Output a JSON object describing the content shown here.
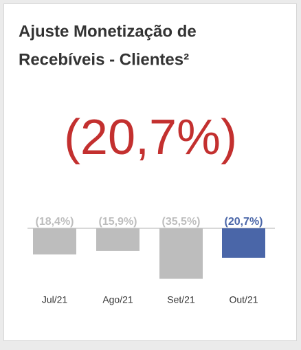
{
  "chart_data": {
    "type": "bar",
    "title": [
      "Ajuste Monetização de",
      "Recebíveis - Clientes²"
    ],
    "headline": "(20,7%)",
    "categories": [
      "Jul/21",
      "Ago/21",
      "Set/21",
      "Out/21"
    ],
    "values": [
      -18.4,
      -15.9,
      -35.5,
      -20.7
    ],
    "value_labels": [
      "(18,4%)",
      "(15,9%)",
      "(35,5%)",
      "(20,7%)"
    ],
    "colors": [
      "#bdbdbd",
      "#bdbdbd",
      "#bdbdbd",
      "#4a66a8"
    ],
    "ylim": [
      -40,
      0
    ]
  }
}
